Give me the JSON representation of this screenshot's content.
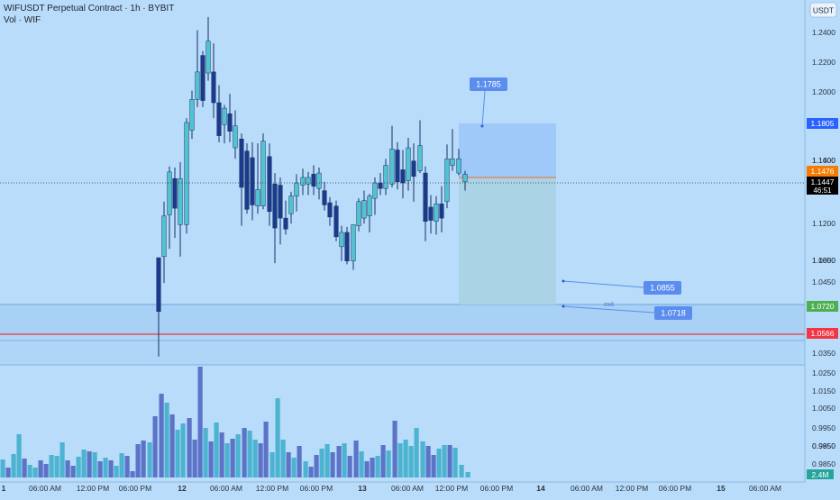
{
  "header": {
    "title": "WIFUSDT Perpetual Contract · 1h · BYBIT",
    "volume_label": "Vol · WIF",
    "currency_badge": "USDT"
  },
  "chart_data": {
    "type": "candlestick",
    "symbol": "WIFUSDT",
    "timeframe": "1h",
    "exchange": "BYBIT",
    "price_axis": {
      "ticks": [
        "1.2400",
        "1.2200",
        "1.2000",
        "1.1800",
        "1.1600",
        "1.1400",
        "1.1200",
        "1.1000",
        "1.0850",
        "1.0650",
        "1.0450",
        "1.0350",
        "1.0250",
        "1.0150",
        "1.0050",
        "0.9950",
        "0.9850"
      ]
    },
    "time_axis": {
      "ticks": [
        "1",
        "06:00 AM",
        "12:00 PM",
        "06:00 PM",
        "12",
        "06:00 AM",
        "12:00 PM",
        "06:00 PM",
        "13",
        "06:00 AM",
        "12:00 PM",
        "06:00 PM",
        "14",
        "06:00 AM",
        "12:00 PM",
        "06:00 PM",
        "15",
        "06:00 AM"
      ]
    },
    "price_tags": [
      {
        "value": "1.1805",
        "color": "#2962ff",
        "text_color": "#ffffff"
      },
      {
        "value": "1.1476",
        "color": "#f57c00",
        "text_color": "#ffffff"
      },
      {
        "value": "1.1447",
        "color": "#000000",
        "text_color": "#ffffff",
        "countdown": "46:51"
      },
      {
        "value": "1.0720",
        "color": "#4caf50",
        "text_color": "#ffffff"
      },
      {
        "value": "1.0566",
        "color": "#f23645",
        "text_color": "#ffffff"
      }
    ],
    "volume_tag": {
      "value": "2.4M",
      "color": "#26a69a"
    },
    "callouts": [
      {
        "label": "1.1785"
      },
      {
        "label": "1.0855"
      },
      {
        "label": "1.0718"
      }
    ],
    "annotation_text": "exit",
    "colors": {
      "background": "#b8dcfa",
      "bull": "#4fc3d0",
      "bear": "#1a3a8c",
      "vol_bull": "#4cb3d0",
      "vol_bear": "#5d73c8",
      "target_zone": "#9ec9f8",
      "stop_zone": "#aad3e6",
      "callout": "#5b8def"
    }
  }
}
